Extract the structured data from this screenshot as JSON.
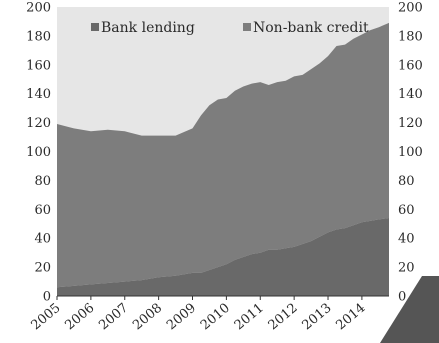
{
  "chart_data": {
    "type": "area",
    "stacked": true,
    "title": "",
    "xlabel": "",
    "ylabel": "",
    "ylim": [
      0,
      200
    ],
    "y_ticks": [
      0,
      20,
      40,
      60,
      80,
      100,
      120,
      140,
      160,
      180,
      200
    ],
    "x_tick_labels": [
      "2005",
      "2006",
      "2007",
      "2008",
      "2009",
      "2010",
      "2011",
      "2012",
      "2013",
      "2014"
    ],
    "x_range": [
      2005.0,
      2014.8
    ],
    "grid": false,
    "legend_position": "top",
    "colors": {
      "plot_background": "#e6e6e6",
      "bank_lending": "#696969",
      "non_bank_credit": "#7d7d7d"
    },
    "series": [
      {
        "name": "Bank lending",
        "x": [
          2005.0,
          2005.5,
          2006.0,
          2006.5,
          2007.0,
          2007.5,
          2008.0,
          2008.5,
          2009.0,
          2009.25,
          2009.5,
          2009.75,
          2010.0,
          2010.25,
          2010.5,
          2010.75,
          2011.0,
          2011.25,
          2011.5,
          2011.75,
          2012.0,
          2012.25,
          2012.5,
          2012.75,
          2013.0,
          2013.25,
          2013.5,
          2013.75,
          2014.0,
          2014.25,
          2014.5,
          2014.8
        ],
        "values": [
          6,
          7,
          8,
          9,
          10,
          11,
          13,
          14,
          16,
          16,
          18,
          20,
          22,
          25,
          27,
          29,
          30,
          32,
          32,
          33,
          34,
          36,
          38,
          41,
          44,
          46,
          47,
          49,
          51,
          52,
          53,
          54
        ]
      },
      {
        "name": "Non-bank credit",
        "x": [
          2005.0,
          2005.5,
          2006.0,
          2006.5,
          2007.0,
          2007.5,
          2008.0,
          2008.5,
          2009.0,
          2009.25,
          2009.5,
          2009.75,
          2010.0,
          2010.25,
          2010.5,
          2010.75,
          2011.0,
          2011.25,
          2011.5,
          2011.75,
          2012.0,
          2012.25,
          2012.5,
          2012.75,
          2013.0,
          2013.25,
          2013.5,
          2013.75,
          2014.0,
          2014.25,
          2014.5,
          2014.8
        ],
        "values": [
          113,
          109,
          106,
          106,
          104,
          100,
          98,
          97,
          100,
          109,
          114,
          116,
          115,
          117,
          118,
          118,
          118,
          114,
          116,
          116,
          118,
          117,
          119,
          120,
          122,
          127,
          127,
          129,
          130,
          132,
          133,
          135
        ]
      }
    ]
  }
}
